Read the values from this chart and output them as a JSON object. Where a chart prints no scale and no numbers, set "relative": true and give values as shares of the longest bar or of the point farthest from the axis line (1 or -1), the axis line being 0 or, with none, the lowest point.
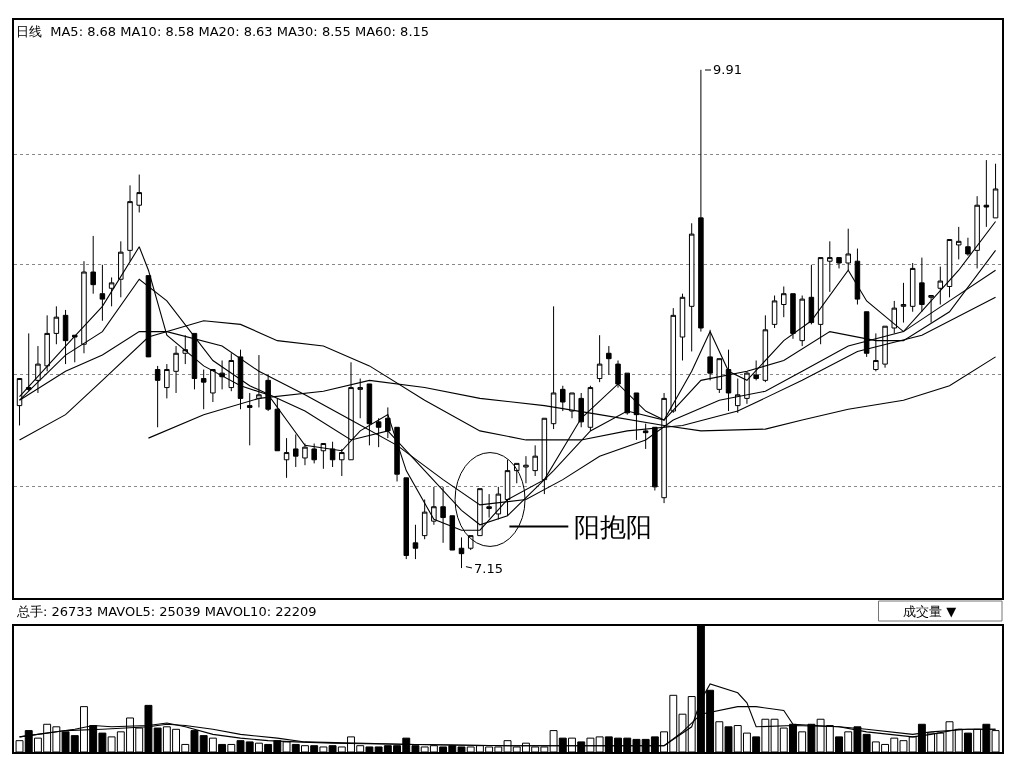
{
  "chart_data": [
    {
      "type": "candlestick",
      "title": "日线  MA5: 8.68 MA10: 8.58 MA20: 8.63 MA30: 8.55 MA60: 8.15",
      "color": "#000000",
      "categories": [
        null,
        null,
        null,
        null,
        null,
        null,
        null,
        null,
        null,
        null,
        null,
        null,
        null,
        null,
        null,
        null,
        null,
        null,
        null,
        null,
        null,
        null,
        null,
        null,
        null,
        null,
        null,
        null,
        null,
        null,
        null,
        null,
        null,
        null,
        null,
        null,
        null,
        null,
        null,
        null,
        null,
        null,
        null,
        null,
        null,
        null,
        null,
        null,
        null,
        null,
        null,
        null,
        null,
        null,
        null,
        null,
        null,
        null,
        null,
        null,
        null,
        null,
        null,
        null,
        null,
        null,
        null,
        null,
        null,
        null,
        null,
        null,
        null,
        null,
        null,
        null,
        null,
        null,
        null,
        null,
        null,
        null,
        null,
        null,
        null,
        null,
        null,
        null,
        null,
        null,
        null,
        null,
        null,
        null,
        null,
        null,
        null,
        null,
        null,
        null,
        null,
        null,
        null,
        null,
        null,
        null,
        null
      ],
      "ohlc": [
        [
          8.05,
          8.2,
          7.94,
          8.2
        ],
        [
          8.15,
          8.45,
          8.13,
          8.14
        ],
        [
          8.19,
          8.38,
          8.12,
          8.28
        ],
        [
          8.27,
          8.55,
          8.24,
          8.45
        ],
        [
          8.45,
          8.6,
          8.39,
          8.54
        ],
        [
          8.55,
          8.58,
          8.28,
          8.41
        ],
        [
          8.44,
          8.44,
          8.29,
          8.43
        ],
        [
          8.39,
          8.85,
          8.34,
          8.79
        ],
        [
          8.79,
          8.99,
          8.67,
          8.72
        ],
        [
          8.67,
          8.83,
          8.52,
          8.64
        ],
        [
          8.7,
          8.76,
          8.6,
          8.73
        ],
        [
          8.75,
          8.96,
          8.65,
          8.9
        ],
        [
          8.91,
          9.27,
          8.85,
          9.18
        ],
        [
          9.16,
          9.33,
          9.12,
          9.23
        ],
        [
          8.77,
          8.77,
          8.32,
          8.32
        ],
        [
          8.25,
          8.27,
          7.93,
          8.19
        ],
        [
          8.15,
          8.28,
          8.09,
          8.25
        ],
        [
          8.24,
          8.38,
          8.12,
          8.34
        ],
        [
          8.34,
          8.44,
          8.28,
          8.36
        ],
        [
          8.45,
          8.45,
          8.14,
          8.2
        ],
        [
          8.2,
          8.25,
          8.03,
          8.18
        ],
        [
          8.12,
          8.25,
          8.07,
          8.25
        ],
        [
          8.23,
          8.3,
          8.14,
          8.21
        ],
        [
          8.15,
          8.34,
          8.13,
          8.3
        ],
        [
          8.32,
          8.36,
          8.03,
          8.09
        ],
        [
          8.05,
          8.12,
          7.83,
          8.04
        ],
        [
          8.09,
          8.33,
          8.04,
          8.11
        ],
        [
          8.19,
          8.22,
          8.02,
          8.03
        ],
        [
          8.03,
          8.09,
          7.8,
          7.8
        ],
        [
          7.75,
          7.87,
          7.65,
          7.79
        ],
        [
          7.81,
          7.89,
          7.71,
          7.77
        ],
        [
          7.76,
          7.84,
          7.72,
          7.82
        ],
        [
          7.81,
          7.84,
          7.73,
          7.75
        ],
        [
          7.8,
          7.84,
          7.7,
          7.84
        ],
        [
          7.81,
          7.85,
          7.71,
          7.75
        ],
        [
          7.75,
          7.81,
          7.66,
          7.79
        ],
        [
          7.75,
          8.29,
          7.75,
          8.15
        ],
        [
          8.14,
          8.2,
          7.98,
          8.15
        ],
        [
          8.17,
          8.17,
          7.83,
          7.95
        ],
        [
          7.96,
          7.98,
          7.82,
          7.93
        ],
        [
          7.98,
          8.04,
          7.87,
          7.91
        ],
        [
          7.93,
          7.93,
          7.63,
          7.67
        ],
        [
          7.65,
          7.65,
          7.2,
          7.22
        ],
        [
          7.29,
          7.39,
          7.2,
          7.26
        ],
        [
          7.33,
          7.53,
          7.31,
          7.46
        ],
        [
          7.41,
          7.6,
          7.39,
          7.49
        ],
        [
          7.49,
          7.6,
          7.29,
          7.43
        ],
        [
          7.44,
          7.44,
          7.25,
          7.25
        ],
        [
          7.26,
          7.32,
          7.15,
          7.23
        ],
        [
          7.26,
          7.33,
          7.25,
          7.33
        ],
        [
          7.33,
          7.59,
          7.33,
          7.59
        ],
        [
          7.48,
          7.56,
          7.43,
          7.49
        ],
        [
          7.45,
          7.6,
          7.42,
          7.56
        ],
        [
          7.53,
          7.75,
          7.44,
          7.69
        ],
        [
          7.69,
          7.73,
          7.62,
          7.73
        ],
        [
          7.71,
          7.77,
          7.62,
          7.72
        ],
        [
          7.69,
          7.83,
          7.66,
          7.77
        ],
        [
          7.64,
          7.98,
          7.56,
          7.98
        ],
        [
          7.95,
          8.6,
          7.92,
          8.12
        ],
        [
          8.14,
          8.16,
          8.02,
          8.07
        ],
        [
          8.02,
          8.12,
          7.98,
          8.12
        ],
        [
          8.09,
          8.12,
          7.93,
          7.96
        ],
        [
          7.93,
          8.16,
          7.91,
          8.15
        ],
        [
          8.2,
          8.44,
          8.18,
          8.28
        ],
        [
          8.34,
          8.38,
          8.22,
          8.31
        ],
        [
          8.28,
          8.3,
          8.15,
          8.17
        ],
        [
          8.23,
          8.23,
          8.0,
          8.01
        ],
        [
          8.12,
          8.12,
          7.86,
          8.0
        ],
        [
          7.91,
          7.95,
          7.81,
          7.9
        ],
        [
          7.93,
          7.93,
          7.58,
          7.6
        ],
        [
          7.54,
          8.12,
          7.51,
          8.09
        ],
        [
          8.02,
          8.59,
          8.01,
          8.55
        ],
        [
          8.43,
          8.67,
          8.3,
          8.65
        ],
        [
          8.6,
          9.06,
          8.35,
          9.0
        ],
        [
          9.09,
          9.91,
          8.46,
          8.48
        ],
        [
          8.32,
          8.47,
          8.19,
          8.23
        ],
        [
          8.14,
          8.31,
          8.12,
          8.31
        ],
        [
          8.25,
          8.36,
          8.02,
          8.12
        ],
        [
          8.05,
          8.2,
          8.01,
          8.11
        ],
        [
          8.09,
          8.24,
          8.06,
          8.23
        ],
        [
          8.22,
          8.3,
          8.19,
          8.2
        ],
        [
          8.19,
          8.55,
          8.18,
          8.47
        ],
        [
          8.5,
          8.66,
          8.48,
          8.63
        ],
        [
          8.61,
          8.71,
          8.54,
          8.67
        ],
        [
          8.67,
          8.67,
          8.42,
          8.45
        ],
        [
          8.41,
          8.66,
          8.38,
          8.64
        ],
        [
          8.65,
          8.83,
          8.5,
          8.51
        ],
        [
          8.5,
          8.87,
          8.39,
          8.87
        ],
        [
          8.85,
          8.96,
          8.68,
          8.87
        ],
        [
          8.87,
          8.87,
          8.81,
          8.84
        ],
        [
          8.84,
          9.03,
          8.8,
          8.89
        ],
        [
          8.85,
          8.92,
          8.61,
          8.64
        ],
        [
          8.57,
          8.57,
          8.32,
          8.34
        ],
        [
          8.25,
          8.45,
          8.24,
          8.3
        ],
        [
          8.28,
          8.49,
          8.26,
          8.49
        ],
        [
          8.48,
          8.63,
          8.45,
          8.59
        ],
        [
          8.6,
          8.73,
          8.51,
          8.61
        ],
        [
          8.6,
          8.84,
          8.57,
          8.81
        ],
        [
          8.73,
          8.87,
          8.57,
          8.61
        ],
        [
          8.65,
          8.66,
          8.51,
          8.66
        ],
        [
          8.7,
          8.82,
          8.61,
          8.74
        ],
        [
          8.71,
          8.97,
          8.65,
          8.97
        ],
        [
          8.94,
          9.04,
          8.86,
          8.96
        ],
        [
          8.93,
          8.98,
          8.88,
          8.89
        ],
        [
          8.91,
          9.21,
          8.81,
          9.16
        ],
        [
          9.16,
          9.41,
          9.04,
          9.15
        ],
        [
          9.09,
          9.39,
          9.09,
          9.25
        ]
      ],
      "series": [
        {
          "type": "line",
          "color": "#000000",
          "values": [
            8.1,
            null,
            null,
            null,
            null,
            8.38,
            null,
            null,
            null,
            8.6,
            null,
            null,
            null,
            8.93,
            8.8,
            null,
            8.44,
            null,
            null,
            null,
            8.27,
            null,
            null,
            null,
            8.16,
            null,
            null,
            8.11,
            null,
            null,
            null,
            7.83,
            null,
            null,
            null,
            7.8,
            null,
            7.91,
            null,
            null,
            8.0,
            null,
            7.69,
            null,
            null,
            7.42,
            null,
            null,
            7.36,
            null,
            7.36,
            null,
            null,
            7.53,
            null,
            null,
            null,
            7.64,
            null,
            null,
            null,
            7.98,
            null,
            null,
            null,
            8.17,
            null,
            null,
            8.02,
            null,
            7.97,
            null,
            null,
            8.24,
            null,
            8.46,
            null,
            8.24,
            null,
            8.19,
            null,
            null,
            null,
            8.41,
            null,
            null,
            8.52,
            null,
            null,
            null,
            8.8,
            null,
            8.63,
            null,
            null,
            null,
            8.46,
            null,
            null,
            8.63,
            null,
            null,
            8.8,
            null,
            null,
            null,
            9.07
          ]
        },
        {
          "type": "line",
          "color": "#000000",
          "values": [
            8.08,
            null,
            null,
            null,
            null,
            8.33,
            null,
            null,
            null,
            8.46,
            null,
            null,
            null,
            8.75,
            null,
            null,
            8.63,
            null,
            null,
            null,
            null,
            8.3,
            null,
            null,
            null,
            8.16,
            null,
            null,
            null,
            null,
            null,
            8.02,
            null,
            null,
            null,
            null,
            7.86,
            null,
            null,
            null,
            7.91,
            null,
            null,
            null,
            7.69,
            null,
            null,
            null,
            7.47,
            null,
            7.39,
            null,
            null,
            7.44,
            null,
            null,
            null,
            null,
            7.69,
            null,
            null,
            null,
            7.91,
            null,
            null,
            null,
            8.02,
            null,
            null,
            null,
            7.97,
            null,
            null,
            null,
            8.19,
            null,
            null,
            null,
            null,
            8.24,
            null,
            null,
            null,
            8.3,
            null,
            null,
            null,
            null,
            8.46,
            null,
            null,
            null,
            null,
            8.41,
            null,
            null,
            8.41,
            null,
            null,
            null,
            null,
            8.57,
            null,
            null,
            null,
            null,
            8.91
          ]
        },
        {
          "type": "line",
          "color": "#000000",
          "values": [
            8.08,
            null,
            null,
            null,
            null,
            8.24,
            null,
            null,
            null,
            8.33,
            null,
            null,
            null,
            8.46,
            null,
            null,
            8.46,
            null,
            null,
            null,
            null,
            null,
            8.38,
            null,
            null,
            null,
            8.24,
            null,
            null,
            null,
            null,
            8.11,
            null,
            null,
            null,
            null,
            7.97,
            null,
            null,
            null,
            null,
            7.83,
            null,
            null,
            null,
            null,
            7.64,
            null,
            null,
            null,
            7.5,
            null,
            null,
            null,
            null,
            7.53,
            null,
            null,
            null,
            7.64,
            null,
            null,
            null,
            7.77,
            null,
            null,
            null,
            null,
            7.86,
            null,
            null,
            7.97,
            null,
            null,
            null,
            null,
            8.08,
            null,
            null,
            null,
            null,
            8.13,
            null,
            null,
            null,
            8.24,
            null,
            null,
            null,
            null,
            8.38,
            null,
            null,
            null,
            null,
            null,
            8.46,
            null,
            null,
            null,
            null,
            8.63,
            null,
            null,
            null,
            null,
            8.8
          ]
        },
        {
          "type": "line",
          "color": "#000000",
          "values": [
            7.86,
            null,
            null,
            null,
            null,
            8.0,
            null,
            null,
            null,
            8.19,
            null,
            null,
            null,
            null,
            8.43,
            null,
            null,
            null,
            null,
            null,
            8.52,
            null,
            null,
            null,
            8.5,
            null,
            null,
            null,
            8.41,
            null,
            null,
            null,
            null,
            8.38,
            null,
            null,
            null,
            null,
            8.27,
            null,
            null,
            null,
            null,
            null,
            8.08,
            null,
            null,
            null,
            null,
            null,
            7.91,
            null,
            null,
            null,
            null,
            7.86,
            null,
            null,
            null,
            null,
            null,
            7.86,
            null,
            null,
            null,
            null,
            7.91,
            null,
            null,
            null,
            null,
            null,
            7.94,
            null,
            null,
            null,
            null,
            null,
            8.02,
            null,
            null,
            null,
            null,
            null,
            null,
            8.19,
            null,
            null,
            null,
            null,
            null,
            8.35,
            null,
            null,
            null,
            null,
            null,
            null,
            8.44,
            null,
            null,
            null,
            null,
            null,
            null,
            null,
            8.65
          ]
        },
        {
          "type": "line",
          "color": "#000000",
          "values": [
            null,
            null,
            null,
            null,
            null,
            null,
            null,
            null,
            null,
            null,
            null,
            null,
            null,
            null,
            7.87,
            null,
            null,
            null,
            null,
            null,
            8.0,
            null,
            null,
            null,
            null,
            null,
            8.09,
            null,
            null,
            null,
            null,
            null,
            null,
            8.13,
            null,
            null,
            null,
            null,
            8.19,
            null,
            null,
            null,
            null,
            null,
            8.15,
            null,
            null,
            null,
            null,
            null,
            8.09,
            null,
            null,
            null,
            null,
            null,
            null,
            8.05,
            null,
            null,
            null,
            null,
            null,
            8.0,
            null,
            null,
            null,
            null,
            null,
            null,
            7.94,
            null,
            null,
            null,
            7.91,
            null,
            null,
            null,
            null,
            null,
            null,
            7.92,
            null,
            null,
            null,
            7.97,
            null,
            null,
            null,
            null,
            8.03,
            null,
            null,
            null,
            null,
            null,
            8.08,
            null,
            null,
            null,
            null,
            8.16,
            null,
            null,
            null,
            null,
            8.32
          ]
        }
      ],
      "yticks": [
        {
          "value": 9.44,
          "label": null
        },
        {
          "value": 8.83,
          "label": null
        },
        {
          "value": 8.22,
          "label": null
        },
        {
          "value": 7.6,
          "label": null
        }
      ],
      "grid": "y",
      "legend": false,
      "annotations": [
        "9.91",
        "7.15",
        "阳抱阳"
      ]
    },
    {
      "type": "bar",
      "title": "总手: 26733 MAVOL5: 25039 MAVOL10: 22209",
      "relative": true,
      "categories": [
        null,
        null,
        null,
        null,
        null,
        null,
        null,
        null,
        null,
        null,
        null,
        null,
        null,
        null,
        null,
        null,
        null,
        null,
        null,
        null,
        null,
        null,
        null,
        null,
        null,
        null,
        null,
        null,
        null,
        null,
        null,
        null,
        null,
        null,
        null,
        null,
        null,
        null,
        null,
        null,
        null,
        null,
        null,
        null,
        null,
        null,
        null,
        null,
        null,
        null,
        null,
        null,
        null,
        null,
        null,
        null,
        null,
        null,
        null,
        null,
        null,
        null,
        null,
        null,
        null,
        null,
        null,
        null,
        null,
        null,
        null,
        null,
        null,
        null,
        null,
        null,
        null,
        null,
        null,
        null,
        null,
        null,
        null,
        null,
        null,
        null,
        null,
        null,
        null,
        null,
        null,
        null,
        null,
        null,
        null,
        null,
        null,
        null,
        null,
        null,
        null,
        null,
        null,
        null,
        null,
        null,
        null
      ],
      "values": [
        0.09,
        0.17,
        0.11,
        0.22,
        0.2,
        0.16,
        0.13,
        0.36,
        0.21,
        0.15,
        0.12,
        0.16,
        0.27,
        0.19,
        0.37,
        0.19,
        0.2,
        0.18,
        0.06,
        0.17,
        0.13,
        0.11,
        0.06,
        0.06,
        0.09,
        0.08,
        0.07,
        0.06,
        0.09,
        0.08,
        0.06,
        0.05,
        0.05,
        0.04,
        0.05,
        0.04,
        0.12,
        0.05,
        0.04,
        0.04,
        0.05,
        0.05,
        0.11,
        0.05,
        0.04,
        0.05,
        0.04,
        0.05,
        0.04,
        0.04,
        0.05,
        0.04,
        0.04,
        0.09,
        0.04,
        0.07,
        0.04,
        0.04,
        0.17,
        0.11,
        0.11,
        0.08,
        0.11,
        0.12,
        0.12,
        0.11,
        0.11,
        0.1,
        0.1,
        0.12,
        0.16,
        0.45,
        0.3,
        0.44,
        1,
        0.49,
        0.24,
        0.2,
        0.21,
        0.15,
        0.12,
        0.26,
        0.26,
        0.19,
        0.22,
        0.16,
        0.22,
        0.26,
        0.21,
        0.12,
        0.16,
        0.2,
        0.14,
        0.08,
        0.06,
        0.11,
        0.09,
        0.12,
        0.22,
        0.15,
        0.15,
        0.24,
        0.18,
        0.15,
        0.18,
        0.22,
        0.17
      ],
      "colors": [
        "#ffffff",
        "#000000",
        "#ffffff",
        "#ffffff",
        "#ffffff",
        "#000000",
        "#000000",
        "#ffffff",
        "#000000",
        "#000000",
        "#ffffff",
        "#ffffff",
        "#ffffff",
        "#ffffff",
        "#000000",
        "#000000",
        "#ffffff",
        "#ffffff",
        "#ffffff",
        "#000000",
        "#000000",
        "#ffffff",
        "#000000",
        "#ffffff",
        "#000000",
        "#000000",
        "#ffffff",
        "#000000",
        "#000000",
        "#ffffff",
        "#000000",
        "#ffffff",
        "#000000",
        "#ffffff",
        "#000000",
        "#ffffff",
        "#ffffff",
        "#ffffff",
        "#000000",
        "#000000",
        "#000000",
        "#000000",
        "#000000",
        "#000000",
        "#ffffff",
        "#ffffff",
        "#000000",
        "#000000",
        "#000000",
        "#ffffff",
        "#ffffff",
        "#ffffff",
        "#ffffff",
        "#ffffff",
        "#ffffff",
        "#ffffff",
        "#ffffff",
        "#ffffff",
        "#ffffff",
        "#000000",
        "#ffffff",
        "#000000",
        "#ffffff",
        "#ffffff",
        "#000000",
        "#000000",
        "#000000",
        "#000000",
        "#000000",
        "#000000",
        "#ffffff",
        "#ffffff",
        "#ffffff",
        "#ffffff",
        "#000000",
        "#000000",
        "#ffffff",
        "#000000",
        "#ffffff",
        "#ffffff",
        "#000000",
        "#ffffff",
        "#ffffff",
        "#ffffff",
        "#000000",
        "#ffffff",
        "#000000",
        "#ffffff",
        "#ffffff",
        "#000000",
        "#ffffff",
        "#000000",
        "#000000",
        "#ffffff",
        "#ffffff",
        "#ffffff",
        "#ffffff",
        "#ffffff",
        "#000000",
        "#ffffff",
        "#ffffff",
        "#ffffff",
        "#ffffff",
        "#000000",
        "#ffffff",
        "#000000",
        "#ffffff"
      ],
      "series": [
        {
          "type": "line",
          "color": "#000000",
          "values": [
            0.12,
            null,
            null,
            null,
            null,
            null,
            0.18,
            null,
            0.21,
            null,
            0.2,
            null,
            null,
            null,
            0.21,
            null,
            0.23,
            null,
            0.2,
            null,
            null,
            0.14,
            null,
            null,
            0.11,
            null,
            null,
            0.09,
            null,
            null,
            0.08,
            null,
            null,
            null,
            0.07,
            null,
            null,
            null,
            null,
            null,
            null,
            null,
            null,
            0.06,
            null,
            null,
            null,
            null,
            null,
            null,
            null,
            null,
            null,
            0.05,
            null,
            null,
            null,
            null,
            null,
            null,
            null,
            null,
            null,
            null,
            null,
            null,
            null,
            null,
            null,
            null,
            0.05,
            null,
            null,
            0.2,
            0.41,
            0.54,
            null,
            null,
            0.47,
            0.39,
            0.2,
            null,
            null,
            null,
            0.21,
            null,
            null,
            null,
            null,
            0.2,
            null,
            null,
            0.16,
            null,
            null,
            null,
            null,
            0.12,
            null,
            0.14,
            null,
            null,
            0.18,
            null,
            null,
            null,
            0.18
          ]
        },
        {
          "type": "line",
          "color": "#000000",
          "values": [
            0.12,
            null,
            null,
            null,
            null,
            0.17,
            null,
            null,
            null,
            0.18,
            null,
            null,
            null,
            null,
            0.2,
            null,
            0.22,
            null,
            0.21,
            null,
            null,
            0.18,
            null,
            null,
            0.14,
            null,
            null,
            null,
            0.11,
            null,
            null,
            0.08,
            null,
            null,
            null,
            null,
            null,
            null,
            null,
            null,
            null,
            null,
            null,
            0.06,
            null,
            null,
            null,
            null,
            null,
            null,
            null,
            null,
            null,
            0.05,
            null,
            null,
            null,
            null,
            null,
            null,
            null,
            null,
            null,
            null,
            null,
            null,
            null,
            null,
            null,
            null,
            0.05,
            null,
            0.16,
            null,
            0.3,
            null,
            null,
            null,
            0.36,
            null,
            0.36,
            null,
            null,
            0.33,
            0.22,
            null,
            null,
            null,
            null,
            0.2,
            null,
            null,
            0.18,
            null,
            null,
            null,
            null,
            0.14,
            null,
            0.16,
            null,
            null,
            null,
            0.18,
            null,
            null,
            0.18
          ]
        }
      ],
      "legend": false,
      "annotations": [
        "成交量 ▼"
      ]
    }
  ]
}
